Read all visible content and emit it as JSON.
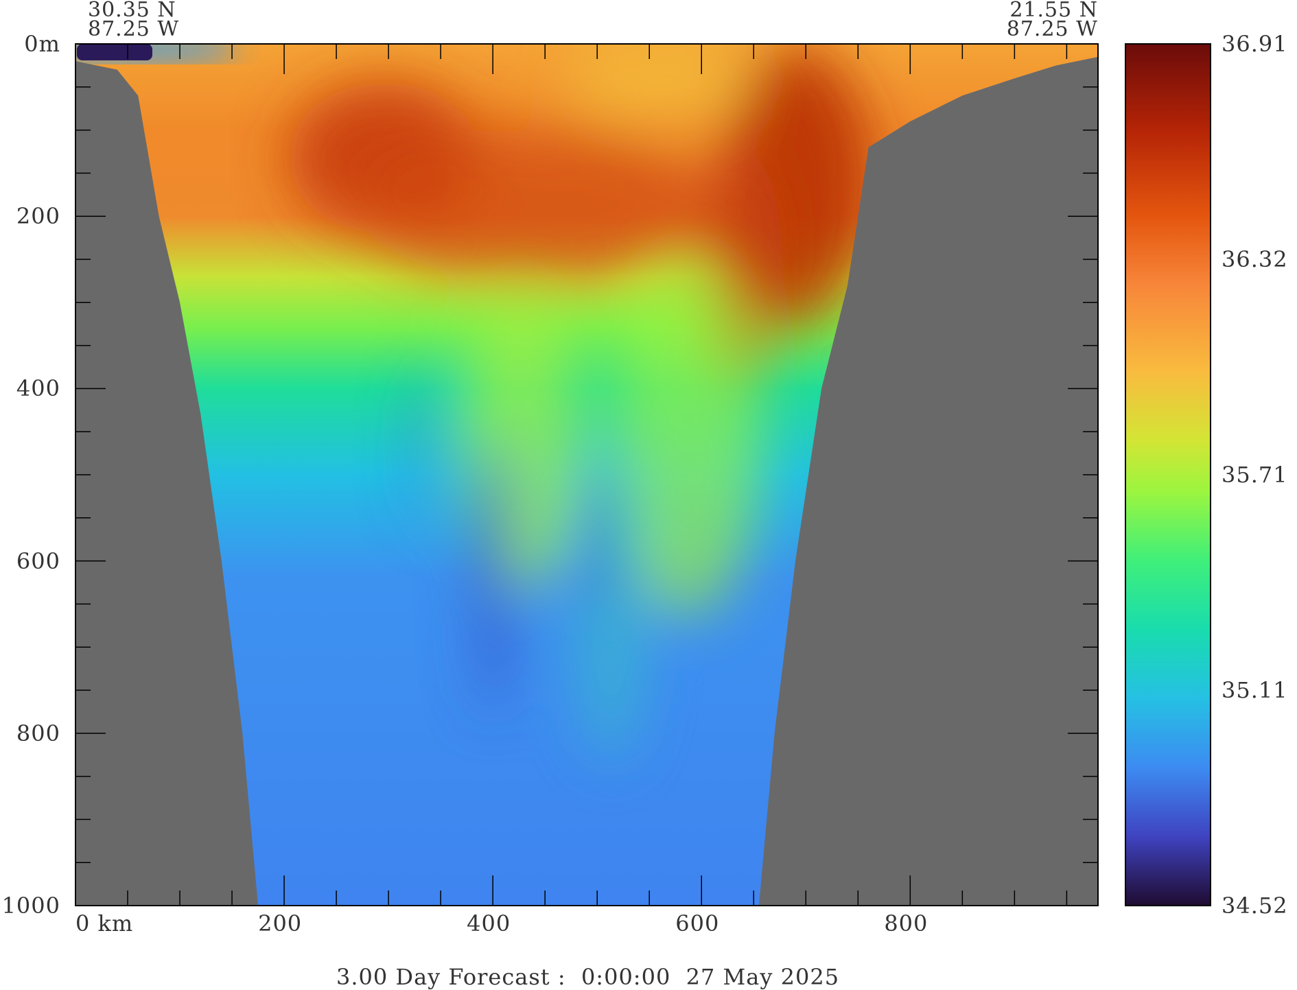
{
  "header": {
    "left_lat": "30.35 N",
    "left_lon": "87.25 W",
    "right_lat": "21.55 N",
    "right_lon": "87.25 W"
  },
  "footer": {
    "forecast_label": "3.00 Day Forecast :  0:00:00  27 May 2025"
  },
  "chart_data": {
    "type": "heatmap",
    "title": "",
    "xlabel": "",
    "ylabel": "",
    "x_range_km": [
      0,
      980
    ],
    "depth_range_m": [
      0,
      1000
    ],
    "x_tick_labels": [
      "0 km",
      "200",
      "400",
      "600",
      "800"
    ],
    "y_tick_labels": [
      "0m",
      "200",
      "400",
      "600",
      "800",
      "1000"
    ],
    "x_ticks": [
      0,
      200,
      400,
      600,
      800
    ],
    "y_ticks": [
      0,
      200,
      400,
      600,
      800,
      1000
    ],
    "colorbar": {
      "min": 34.52,
      "max": 36.91,
      "tick_labels": [
        "36.91",
        "36.32",
        "35.71",
        "35.11",
        "34.52"
      ]
    },
    "bathymetry_left": [
      [
        0,
        20
      ],
      [
        40,
        30
      ],
      [
        60,
        60
      ],
      [
        80,
        200
      ],
      [
        100,
        300
      ],
      [
        120,
        430
      ],
      [
        140,
        600
      ],
      [
        160,
        800
      ],
      [
        175,
        1000
      ]
    ],
    "bathymetry_right": [
      [
        655,
        1000
      ],
      [
        670,
        800
      ],
      [
        690,
        600
      ],
      [
        715,
        400
      ],
      [
        740,
        280
      ],
      [
        760,
        120
      ],
      [
        800,
        90
      ],
      [
        850,
        60
      ],
      [
        900,
        40
      ],
      [
        940,
        25
      ],
      [
        980,
        15
      ]
    ],
    "colors": {
      "land": "#696969",
      "frame": "#000000"
    }
  }
}
